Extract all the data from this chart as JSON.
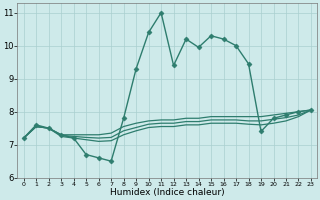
{
  "xlabel": "Humidex (Indice chaleur)",
  "xlim": [
    -0.5,
    23.5
  ],
  "ylim": [
    6,
    11.3
  ],
  "yticks": [
    6,
    7,
    8,
    9,
    10,
    11
  ],
  "xticks": [
    0,
    1,
    2,
    3,
    4,
    5,
    6,
    7,
    8,
    9,
    10,
    11,
    12,
    13,
    14,
    15,
    16,
    17,
    18,
    19,
    20,
    21,
    22,
    23
  ],
  "bg_color": "#ceeaea",
  "grid_color": "#aacfcf",
  "line_color": "#2e7d6e",
  "series": [
    {
      "x": [
        0,
        1,
        2,
        3,
        4,
        5,
        6,
        7,
        8,
        9,
        10,
        11,
        12,
        13,
        14,
        15,
        16,
        17,
        18,
        19,
        20,
        21,
        22,
        23
      ],
      "y": [
        7.2,
        7.6,
        7.5,
        7.3,
        7.2,
        6.7,
        6.6,
        6.5,
        7.8,
        9.3,
        10.4,
        11.0,
        9.4,
        10.2,
        9.95,
        10.3,
        10.2,
        10.0,
        9.45,
        7.4,
        7.8,
        7.9,
        8.0,
        8.05
      ],
      "marker": "D",
      "markersize": 2.5,
      "linewidth": 1.0
    },
    {
      "x": [
        0,
        1,
        2,
        3,
        4,
        5,
        6,
        7,
        8,
        9,
        10,
        11,
        12,
        13,
        14,
        15,
        16,
        17,
        18,
        19,
        20,
        21,
        22,
        23
      ],
      "y": [
        7.2,
        7.55,
        7.5,
        7.3,
        7.3,
        7.3,
        7.3,
        7.35,
        7.55,
        7.65,
        7.72,
        7.75,
        7.75,
        7.8,
        7.8,
        7.85,
        7.85,
        7.85,
        7.85,
        7.85,
        7.9,
        7.95,
        8.0,
        8.05
      ],
      "marker": null,
      "markersize": 0,
      "linewidth": 0.9
    },
    {
      "x": [
        0,
        1,
        2,
        3,
        4,
        5,
        6,
        7,
        8,
        9,
        10,
        11,
        12,
        13,
        14,
        15,
        16,
        17,
        18,
        19,
        20,
        21,
        22,
        23
      ],
      "y": [
        7.2,
        7.55,
        7.5,
        7.28,
        7.25,
        7.22,
        7.2,
        7.22,
        7.42,
        7.52,
        7.62,
        7.65,
        7.65,
        7.7,
        7.7,
        7.75,
        7.75,
        7.75,
        7.72,
        7.72,
        7.77,
        7.82,
        7.9,
        8.05
      ],
      "marker": null,
      "markersize": 0,
      "linewidth": 0.9
    },
    {
      "x": [
        0,
        1,
        2,
        3,
        4,
        5,
        6,
        7,
        8,
        9,
        10,
        11,
        12,
        13,
        14,
        15,
        16,
        17,
        18,
        19,
        20,
        21,
        22,
        23
      ],
      "y": [
        7.2,
        7.55,
        7.5,
        7.25,
        7.2,
        7.15,
        7.1,
        7.12,
        7.3,
        7.42,
        7.52,
        7.55,
        7.55,
        7.6,
        7.6,
        7.65,
        7.65,
        7.65,
        7.62,
        7.6,
        7.65,
        7.72,
        7.85,
        8.05
      ],
      "marker": null,
      "markersize": 0,
      "linewidth": 0.9
    }
  ]
}
